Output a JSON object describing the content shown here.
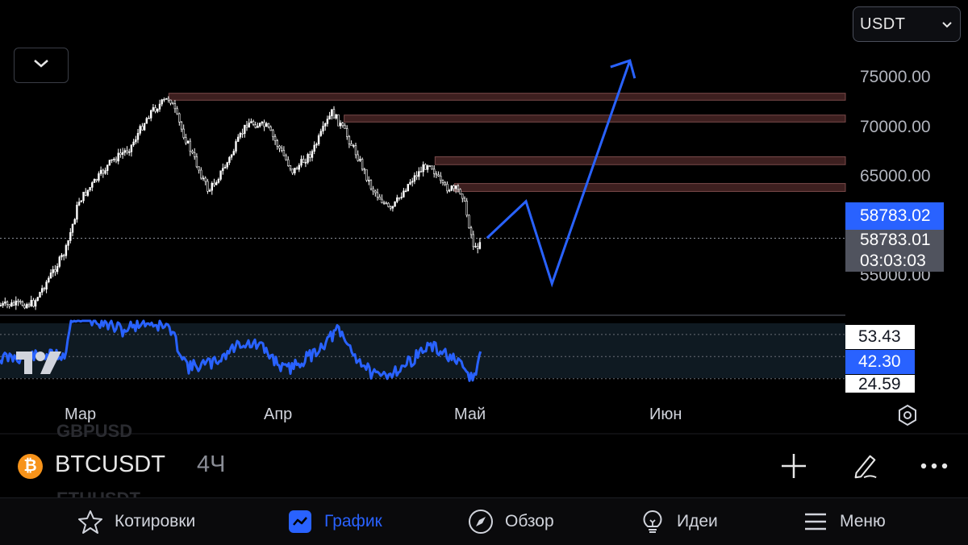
{
  "header": {
    "currency_select": "USDT"
  },
  "price_axis": {
    "labels": [
      "75000.00",
      "70000.00",
      "65000.00",
      "55000.00"
    ],
    "last_price_tag": "58783.02",
    "bar_close_tag": "58783.01",
    "bar_countdown": "03:03:03"
  },
  "rsi_axis": {
    "upper": "53.43",
    "current": "42.30",
    "lower": "24.59"
  },
  "time_axis": [
    "Мар",
    "Апр",
    "Май",
    "Июн"
  ],
  "ghost_symbols": [
    "GBPUSD",
    "ETHUSDT"
  ],
  "symbol_bar": {
    "icon_glyph": "₿",
    "symbol": "BTCUSDT",
    "interval": "4Ч"
  },
  "bottom_nav": {
    "items": [
      {
        "label": "Котировки",
        "icon": "star-icon"
      },
      {
        "label": "График",
        "icon": "chart-icon"
      },
      {
        "label": "Обзор",
        "icon": "compass-icon"
      },
      {
        "label": "Идеи",
        "icon": "lightbulb-icon"
      },
      {
        "label": "Меню",
        "icon": "menu-icon"
      }
    ],
    "active": "График"
  },
  "colors": {
    "accent": "#2962ff",
    "candles": "#ffffff",
    "rsi_line": "#2962ff",
    "resistance_zone": "#3d1f1f",
    "projection_line": "#2962ff"
  },
  "chart_data": {
    "type": "candlestick",
    "symbol": "BTCUSDT",
    "interval": "4Ч",
    "price_range": [
      50000,
      77000
    ],
    "close_path": [
      [
        "2024-02-17",
        52000
      ],
      [
        "2024-02-22",
        52200
      ],
      [
        "2024-02-27",
        57500
      ],
      [
        "2024-02-29",
        62500
      ],
      [
        "2024-03-05",
        66500
      ],
      [
        "2024-03-08",
        68000
      ],
      [
        "2024-03-11",
        71500
      ],
      [
        "2024-03-14",
        73000
      ],
      [
        "2024-03-16",
        69500
      ],
      [
        "2024-03-20",
        63500
      ],
      [
        "2024-03-23",
        66500
      ],
      [
        "2024-03-26",
        70500
      ],
      [
        "2024-03-29",
        70000
      ],
      [
        "2024-04-02",
        65500
      ],
      [
        "2024-04-05",
        67500
      ],
      [
        "2024-04-08",
        71500
      ],
      [
        "2024-04-10",
        69500
      ],
      [
        "2024-04-12",
        67000
      ],
      [
        "2024-04-14",
        64000
      ],
      [
        "2024-04-17",
        61500
      ],
      [
        "2024-04-20",
        64500
      ],
      [
        "2024-04-23",
        66500
      ],
      [
        "2024-04-25",
        64000
      ],
      [
        "2024-04-28",
        63500
      ],
      [
        "2024-04-30",
        57500
      ],
      [
        "2024-05-01",
        58783
      ]
    ],
    "resistance_zones": [
      {
        "from": "2024-03-14",
        "low": 72700,
        "high": 73400
      },
      {
        "from": "2024-04-10",
        "low": 70500,
        "high": 71200
      },
      {
        "from": "2024-04-24",
        "low": 66200,
        "high": 67000
      },
      {
        "from": "2024-04-27",
        "low": 63500,
        "high": 64300
      }
    ],
    "projection": [
      [
        "2024-05-02",
        58800
      ],
      [
        "2024-05-08",
        62500
      ],
      [
        "2024-05-12",
        54200
      ],
      [
        "2024-05-24",
        76700
      ],
      [
        "2024-05-25",
        76200
      ]
    ],
    "last_price_line": 58783.02,
    "rsi": {
      "levels": [
        53.43,
        24.59
      ],
      "current": 42.3,
      "path": [
        [
          "2024-02-17",
          38
        ],
        [
          "2024-02-27",
          40
        ],
        [
          "2024-02-28",
          65
        ],
        [
          "2024-03-03",
          62
        ],
        [
          "2024-03-07",
          56
        ],
        [
          "2024-03-10",
          62
        ],
        [
          "2024-03-14",
          58
        ],
        [
          "2024-03-17",
          32
        ],
        [
          "2024-03-21",
          35
        ],
        [
          "2024-03-25",
          48
        ],
        [
          "2024-03-28",
          46
        ],
        [
          "2024-04-01",
          30
        ],
        [
          "2024-04-05",
          40
        ],
        [
          "2024-04-09",
          56
        ],
        [
          "2024-04-12",
          38
        ],
        [
          "2024-04-15",
          25
        ],
        [
          "2024-04-19",
          32
        ],
        [
          "2024-04-23",
          46
        ],
        [
          "2024-04-26",
          40
        ],
        [
          "2024-04-28",
          32
        ],
        [
          "2024-04-30",
          24
        ],
        [
          "2024-05-01",
          42.3
        ]
      ]
    }
  }
}
